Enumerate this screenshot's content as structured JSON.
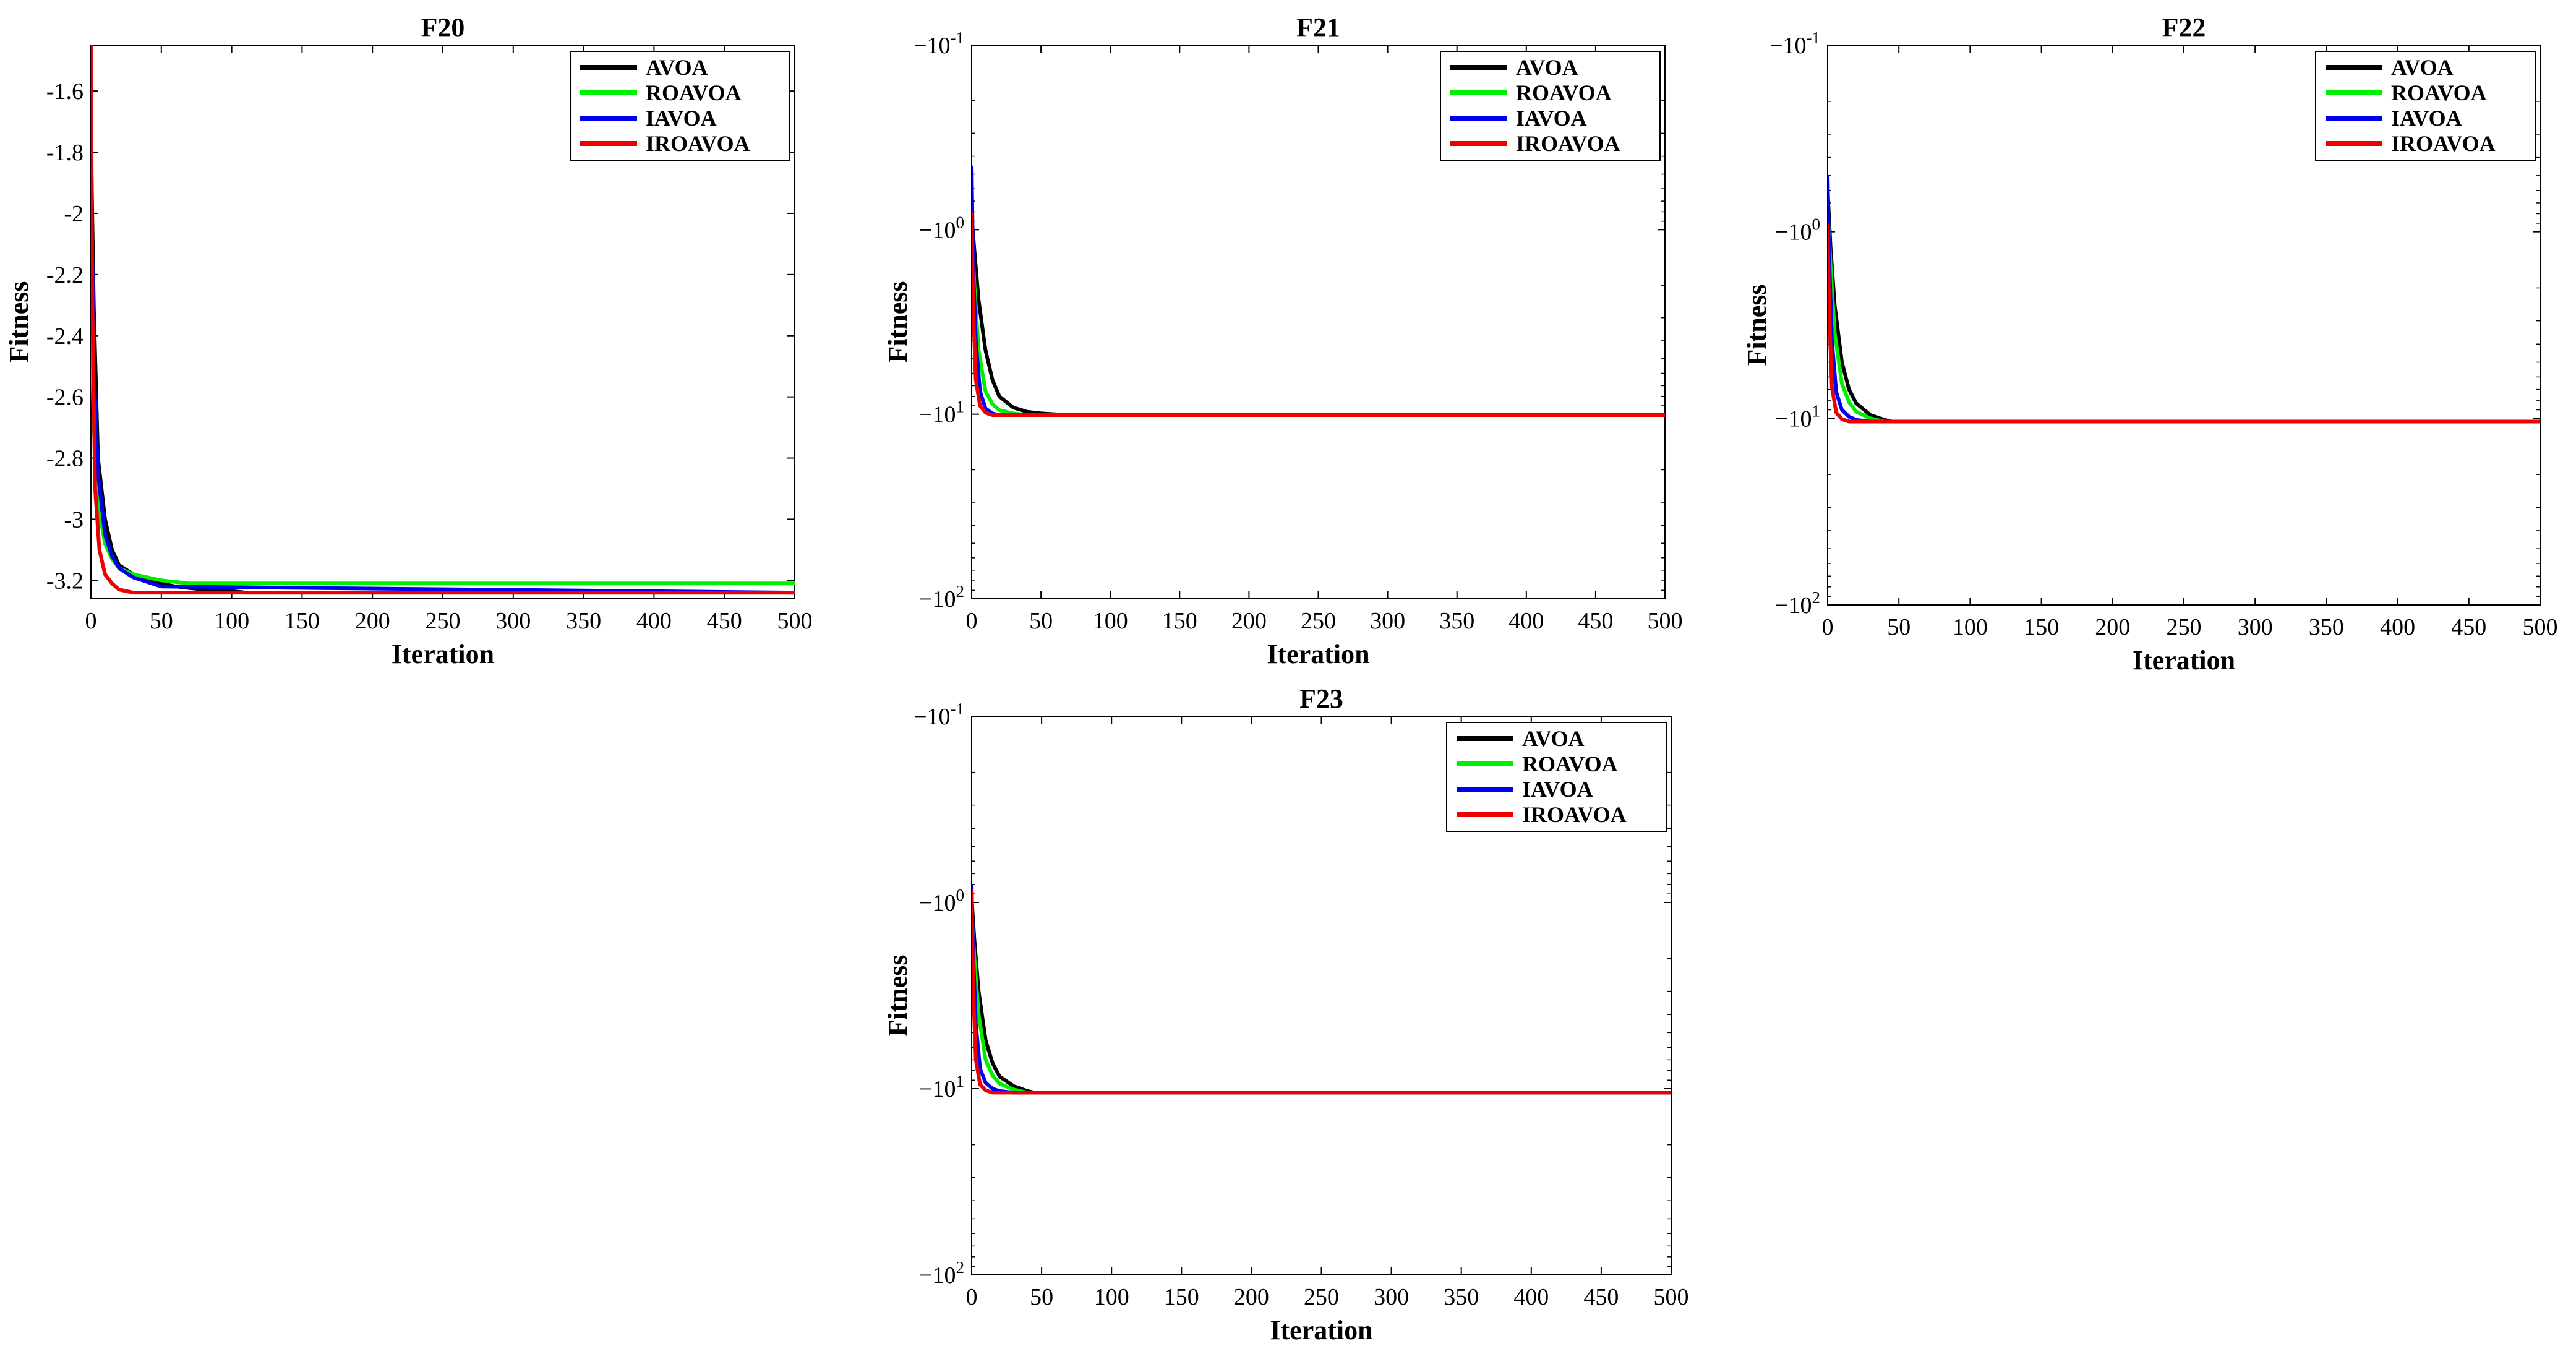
{
  "chart_data": [
    {
      "type": "line",
      "title": "F20",
      "xlabel": "Iteration",
      "ylabel": "Fitness",
      "yscale": "linear",
      "xlim": [
        0,
        500
      ],
      "ylim": [
        -3.26,
        -1.45
      ],
      "xticks": [
        "0",
        "50",
        "100",
        "150",
        "200",
        "250",
        "300",
        "350",
        "400",
        "450",
        "500"
      ],
      "yticks": [
        {
          "value": -1.6,
          "label": "-1.6"
        },
        {
          "value": -1.8,
          "label": "-1.8"
        },
        {
          "value": -2.0,
          "label": "-2"
        },
        {
          "value": -2.2,
          "label": "-2.2"
        },
        {
          "value": -2.4,
          "label": "-2.4"
        },
        {
          "value": -2.6,
          "label": "-2.6"
        },
        {
          "value": -2.8,
          "label": "-2.8"
        },
        {
          "value": -3.0,
          "label": "-3"
        },
        {
          "value": -3.2,
          "label": "-3.2"
        }
      ],
      "legend": "top-right",
      "series": [
        {
          "name": "AVOA",
          "color": "#000000",
          "x": [
            0,
            2,
            5,
            10,
            15,
            20,
            30,
            40,
            50,
            60,
            80,
            100,
            110,
            500
          ],
          "y": [
            -1.75,
            -2.3,
            -2.8,
            -3.0,
            -3.1,
            -3.15,
            -3.18,
            -3.2,
            -3.21,
            -3.22,
            -3.23,
            -3.235,
            -3.24,
            -3.24
          ]
        },
        {
          "name": "ROAVOA",
          "color": "#00ee00",
          "x": [
            0,
            2,
            5,
            10,
            15,
            20,
            30,
            50,
            70,
            500
          ],
          "y": [
            -2.3,
            -2.7,
            -2.95,
            -3.08,
            -3.13,
            -3.16,
            -3.18,
            -3.2,
            -3.21,
            -3.21
          ]
        },
        {
          "name": "IAVOA",
          "color": "#0000ee",
          "x": [
            0,
            2,
            5,
            10,
            15,
            20,
            30,
            50,
            500
          ],
          "y": [
            -1.8,
            -2.5,
            -2.85,
            -3.05,
            -3.12,
            -3.16,
            -3.19,
            -3.22,
            -3.24
          ]
        },
        {
          "name": "IROAVOA",
          "color": "#ee0000",
          "x": [
            0,
            1,
            3,
            6,
            10,
            15,
            20,
            30,
            500
          ],
          "y": [
            -1.45,
            -2.3,
            -2.9,
            -3.1,
            -3.18,
            -3.21,
            -3.23,
            -3.24,
            -3.24
          ]
        }
      ]
    },
    {
      "type": "line",
      "title": "F21",
      "xlabel": "Iteration",
      "ylabel": "Fitness",
      "yscale": "symlog",
      "xlim": [
        0,
        500
      ],
      "ylim": [
        -0.1,
        -100
      ],
      "xticks": [
        "0",
        "50",
        "100",
        "150",
        "200",
        "250",
        "300",
        "350",
        "400",
        "450",
        "500"
      ],
      "yticks": [
        {
          "value": -0.1,
          "base": "−10",
          "exp": "-1"
        },
        {
          "value": -1,
          "base": "−10",
          "exp": "0"
        },
        {
          "value": -10,
          "base": "−10",
          "exp": "1"
        },
        {
          "value": -100,
          "base": "−10",
          "exp": "2"
        }
      ],
      "legend": "top-right",
      "series": [
        {
          "name": "AVOA",
          "color": "#000000",
          "x": [
            0,
            2,
            5,
            10,
            15,
            20,
            30,
            40,
            50,
            60,
            65,
            500
          ],
          "y": [
            -0.85,
            -1.3,
            -2.4,
            -4.5,
            -6.5,
            -8,
            -9.2,
            -9.7,
            -9.9,
            -10,
            -10.1,
            -10.1
          ]
        },
        {
          "name": "ROAVOA",
          "color": "#00ee00",
          "x": [
            0,
            2,
            5,
            10,
            15,
            20,
            30,
            40,
            500
          ],
          "y": [
            -1.0,
            -2.0,
            -4.5,
            -7.5,
            -8.8,
            -9.5,
            -9.9,
            -10.1,
            -10.1
          ]
        },
        {
          "name": "IAVOA",
          "color": "#0000ee",
          "x": [
            0,
            1,
            3,
            6,
            10,
            15,
            20,
            500
          ],
          "y": [
            -0.45,
            -1.5,
            -4.0,
            -7.5,
            -9.3,
            -9.9,
            -10.1,
            -10.1
          ]
        },
        {
          "name": "IROAVOA",
          "color": "#ee0000",
          "x": [
            0,
            1,
            3,
            6,
            10,
            15,
            500
          ],
          "y": [
            -0.8,
            -2.5,
            -6.5,
            -9.0,
            -9.8,
            -10.1,
            -10.1
          ]
        }
      ]
    },
    {
      "type": "line",
      "title": "F22",
      "xlabel": "Iteration",
      "ylabel": "Fitness",
      "yscale": "symlog",
      "xlim": [
        0,
        500
      ],
      "ylim": [
        -0.1,
        -100
      ],
      "xticks": [
        "0",
        "50",
        "100",
        "150",
        "200",
        "250",
        "300",
        "350",
        "400",
        "450",
        "500"
      ],
      "yticks": [
        {
          "value": -0.1,
          "base": "−10",
          "exp": "-1"
        },
        {
          "value": -1,
          "base": "−10",
          "exp": "0"
        },
        {
          "value": -10,
          "base": "−10",
          "exp": "1"
        },
        {
          "value": -100,
          "base": "−10",
          "exp": "2"
        }
      ],
      "legend": "top-right",
      "series": [
        {
          "name": "AVOA",
          "color": "#000000",
          "x": [
            0,
            2,
            5,
            10,
            15,
            20,
            30,
            40,
            45,
            500
          ],
          "y": [
            -0.6,
            -1.2,
            -2.5,
            -5.0,
            -7.0,
            -8.3,
            -9.6,
            -10.2,
            -10.4,
            -10.4
          ]
        },
        {
          "name": "ROAVOA",
          "color": "#00ee00",
          "x": [
            0,
            2,
            5,
            10,
            15,
            20,
            30,
            40,
            500
          ],
          "y": [
            -0.7,
            -1.5,
            -3.5,
            -6.5,
            -8.2,
            -9.2,
            -10.0,
            -10.4,
            -10.4
          ]
        },
        {
          "name": "IAVOA",
          "color": "#0000ee",
          "x": [
            0,
            1,
            3,
            6,
            10,
            15,
            20,
            30,
            500
          ],
          "y": [
            -0.5,
            -1.3,
            -3.8,
            -7.2,
            -9.0,
            -9.8,
            -10.2,
            -10.4,
            -10.4
          ]
        },
        {
          "name": "IROAVOA",
          "color": "#ee0000",
          "x": [
            0,
            1,
            3,
            6,
            10,
            15,
            500
          ],
          "y": [
            -0.9,
            -2.6,
            -6.8,
            -9.3,
            -10.1,
            -10.4,
            -10.4
          ]
        }
      ]
    },
    {
      "type": "line",
      "title": "F23",
      "xlabel": "Iteration",
      "ylabel": "Fitness",
      "yscale": "symlog",
      "xlim": [
        0,
        500
      ],
      "ylim": [
        -0.1,
        -100
      ],
      "xticks": [
        "0",
        "50",
        "100",
        "150",
        "200",
        "250",
        "300",
        "350",
        "400",
        "450",
        "500"
      ],
      "yticks": [
        {
          "value": -0.1,
          "base": "−10",
          "exp": "-1"
        },
        {
          "value": -1,
          "base": "−10",
          "exp": "0"
        },
        {
          "value": -10,
          "base": "−10",
          "exp": "1"
        },
        {
          "value": -100,
          "base": "−10",
          "exp": "2"
        }
      ],
      "legend": "top-right",
      "series": [
        {
          "name": "AVOA",
          "color": "#000000",
          "x": [
            0,
            2,
            5,
            10,
            15,
            20,
            30,
            40,
            45,
            500
          ],
          "y": [
            -0.95,
            -1.6,
            -3.0,
            -5.5,
            -7.3,
            -8.6,
            -9.7,
            -10.3,
            -10.5,
            -10.5
          ]
        },
        {
          "name": "ROAVOA",
          "color": "#00ee00",
          "x": [
            0,
            2,
            5,
            10,
            15,
            20,
            30,
            40,
            500
          ],
          "y": [
            -1.1,
            -2.0,
            -4.0,
            -7.0,
            -8.5,
            -9.4,
            -10.1,
            -10.5,
            -10.5
          ]
        },
        {
          "name": "IAVOA",
          "color": "#0000ee",
          "x": [
            0,
            1,
            3,
            6,
            10,
            15,
            20,
            30,
            500
          ],
          "y": [
            -0.8,
            -1.8,
            -4.5,
            -7.8,
            -9.3,
            -10.0,
            -10.3,
            -10.5,
            -10.5
          ]
        },
        {
          "name": "IROAVOA",
          "color": "#ee0000",
          "x": [
            0,
            1,
            3,
            6,
            10,
            15,
            500
          ],
          "y": [
            -0.85,
            -2.8,
            -7.0,
            -9.5,
            -10.2,
            -10.5,
            -10.5
          ]
        }
      ]
    }
  ]
}
